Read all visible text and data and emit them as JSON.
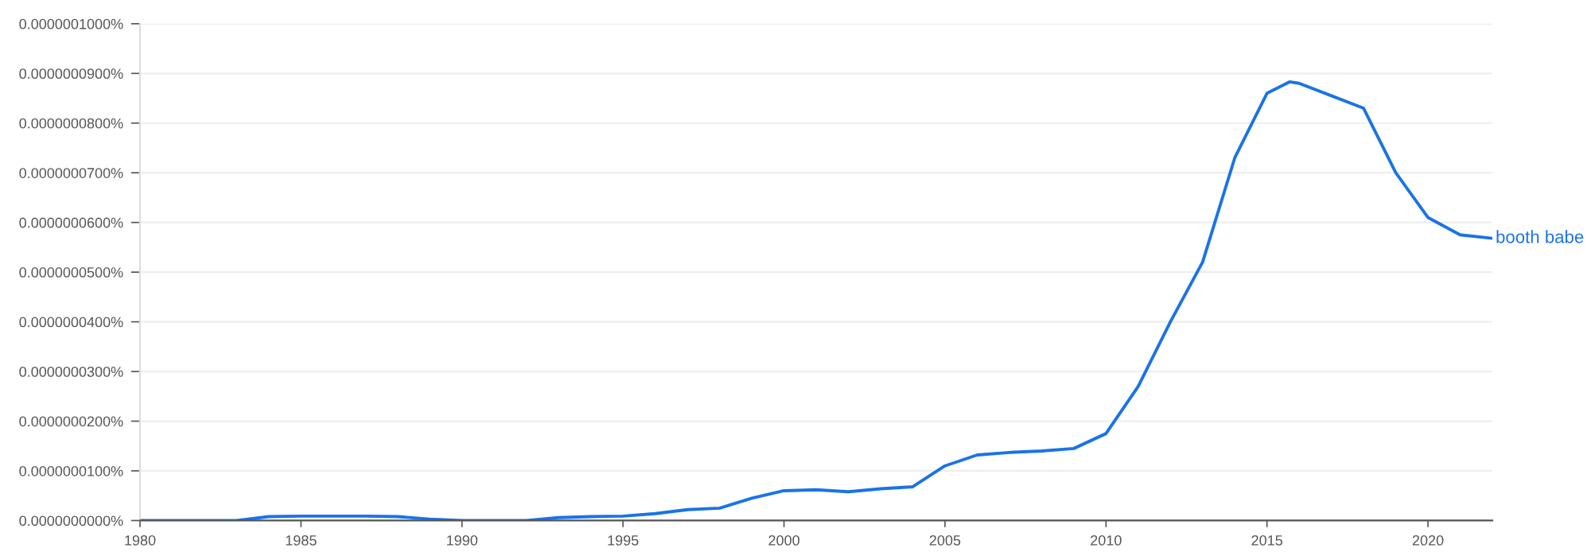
{
  "chart_data": {
    "type": "line",
    "x": [
      1980,
      1982,
      1983,
      1984,
      1985,
      1986,
      1987,
      1988,
      1989,
      1990,
      1991,
      1992,
      1993,
      1994,
      1995,
      1996,
      1997,
      1998,
      1999,
      2000,
      2001,
      2002,
      2003,
      2004,
      2005,
      2006,
      2007,
      2008,
      2009,
      2010,
      2011,
      2012,
      2013,
      2014,
      2015,
      2015.7,
      2016,
      2017,
      2018,
      2019,
      2020,
      2021,
      2022
    ],
    "series": [
      {
        "name": "booth babe",
        "color": "#1a73e8",
        "values": [
          0,
          0,
          0,
          8e-10,
          9e-10,
          9e-10,
          9e-10,
          8e-10,
          3e-10,
          0,
          0,
          0,
          6e-10,
          8e-10,
          9e-10,
          1.4e-09,
          2.2e-09,
          2.5e-09,
          4.5e-09,
          6e-09,
          6.2e-09,
          5.8e-09,
          6.4e-09,
          6.8e-09,
          1.1e-08,
          1.32e-08,
          1.37e-08,
          1.4e-08,
          1.45e-08,
          1.75e-08,
          2.7e-08,
          4e-08,
          5.2e-08,
          7.3e-08,
          8.6e-08,
          8.83e-08,
          8.8e-08,
          8.55e-08,
          8.3e-08,
          7e-08,
          6.1e-08,
          5.75e-08,
          5.68e-08
        ]
      }
    ],
    "xlim": [
      1980,
      2022
    ],
    "xticks": [
      1980,
      1985,
      1990,
      1995,
      2000,
      2005,
      2010,
      2015,
      2020
    ],
    "ylim": [
      0,
      1e-07
    ],
    "yticks": [
      {
        "value": 0,
        "label": "0.0000000000%"
      },
      {
        "value": 1e-08,
        "label": "0.0000000100%"
      },
      {
        "value": 2e-08,
        "label": "0.0000000200%"
      },
      {
        "value": 3e-08,
        "label": "0.0000000300%"
      },
      {
        "value": 4e-08,
        "label": "0.0000000400%"
      },
      {
        "value": 5e-08,
        "label": "0.0000000500%"
      },
      {
        "value": 6e-08,
        "label": "0.0000000600%"
      },
      {
        "value": 7e-08,
        "label": "0.0000000700%"
      },
      {
        "value": 8e-08,
        "label": "0.0000000800%"
      },
      {
        "value": 9e-08,
        "label": "0.0000000900%"
      },
      {
        "value": 1e-07,
        "label": "0.0000001000%"
      }
    ],
    "grid": "y",
    "line_style": "solid",
    "marker": "none"
  }
}
